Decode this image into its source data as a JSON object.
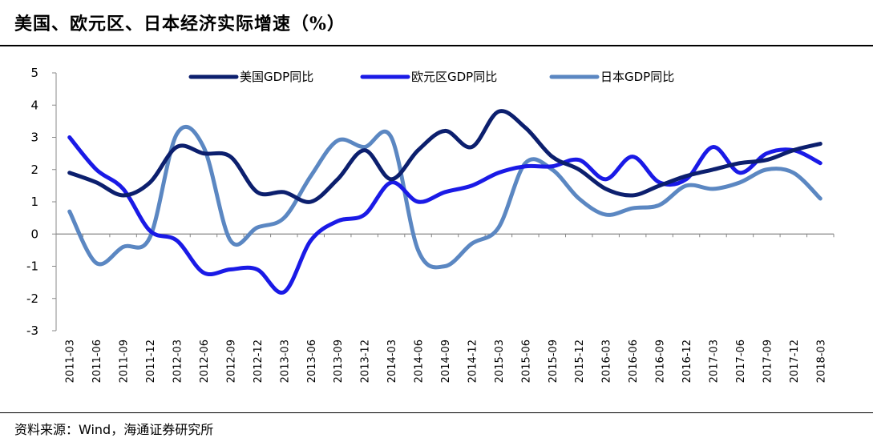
{
  "title": "美国、欧元区、日本经济实际增速（%）",
  "source": "资料来源：Wind，海通证券研究所",
  "colors": {
    "us": "#0c1f6e",
    "euro": "#1a1ae6",
    "japan": "#5b87c2",
    "axis": "#888888"
  },
  "chart_data": {
    "type": "line",
    "title": "美国、欧元区、日本经济实际增速（%）",
    "xlabel": "",
    "ylabel": "",
    "ylim": [
      -3,
      5
    ],
    "yticks": [
      "5",
      "4",
      "3",
      "2",
      "1",
      "0",
      "-1",
      "-2",
      "-3"
    ],
    "legend_position": "top",
    "categories": [
      "2011-03",
      "2011-06",
      "2011-09",
      "2011-12",
      "2012-03",
      "2012-06",
      "2012-09",
      "2012-12",
      "2013-03",
      "2013-06",
      "2013-09",
      "2013-12",
      "2014-03",
      "2014-06",
      "2014-09",
      "2014-12",
      "2015-03",
      "2015-06",
      "2015-09",
      "2015-12",
      "2016-03",
      "2016-06",
      "2016-09",
      "2016-12",
      "2017-03",
      "2017-06",
      "2017-09",
      "2017-12",
      "2018-03"
    ],
    "series": [
      {
        "name": "美国GDP同比",
        "key": "us",
        "values": [
          1.9,
          1.6,
          1.2,
          1.6,
          2.7,
          2.5,
          2.4,
          1.3,
          1.3,
          1.0,
          1.7,
          2.6,
          1.7,
          2.6,
          3.2,
          2.7,
          3.8,
          3.3,
          2.4,
          2.0,
          1.4,
          1.2,
          1.5,
          1.8,
          2.0,
          2.2,
          2.3,
          2.6,
          2.8
        ]
      },
      {
        "name": "欧元区GDP同比",
        "key": "euro",
        "values": [
          3.0,
          2.0,
          1.4,
          0.1,
          -0.2,
          -1.2,
          -1.1,
          -1.1,
          -1.8,
          -0.2,
          0.4,
          0.6,
          1.6,
          1.0,
          1.3,
          1.5,
          1.9,
          2.1,
          2.1,
          2.3,
          1.7,
          2.4,
          1.6,
          1.7,
          2.7,
          1.9,
          2.5,
          2.6,
          2.2
        ]
      },
      {
        "name": "日本GDP同比",
        "key": "japan",
        "values": [
          0.7,
          -0.9,
          -0.4,
          -0.1,
          3.1,
          2.7,
          -0.2,
          0.2,
          0.5,
          1.8,
          2.9,
          2.7,
          3.0,
          -0.5,
          -1.0,
          -0.3,
          0.2,
          2.2,
          2.0,
          1.1,
          0.6,
          0.8,
          0.9,
          1.5,
          1.4,
          1.6,
          2.0,
          1.9,
          1.1
        ]
      }
    ]
  }
}
